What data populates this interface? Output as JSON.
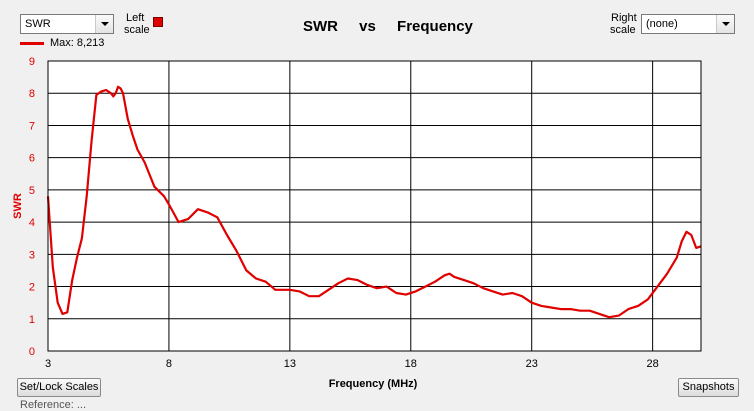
{
  "left_select": {
    "value": "SWR"
  },
  "left_scale": {
    "label_line1": "Left",
    "label_line2": "scale",
    "swatch_color": "#e00000"
  },
  "title": {
    "left": "SWR",
    "middle": "vs",
    "right": "Frequency"
  },
  "right_scale": {
    "label_line1": "Right",
    "label_line2": "scale"
  },
  "right_select": {
    "value": "(none)"
  },
  "legend": {
    "label": "Max: 8,213",
    "color": "#e00000"
  },
  "buttons": {
    "set_lock": "Set/Lock Scales",
    "snapshots": "Snapshots"
  },
  "footer_fragment": "Reference: ...",
  "chart_data": {
    "type": "line",
    "xlabel": "Frequency (MHz)",
    "ylabel": "SWR",
    "xlim": [
      3,
      30
    ],
    "ylim": [
      0,
      9
    ],
    "x_ticks": [
      "3",
      "8",
      "13",
      "18",
      "23",
      "28"
    ],
    "y_ticks": [
      "0",
      "1",
      "2",
      "3",
      "4",
      "5",
      "6",
      "7",
      "8",
      "9"
    ],
    "grid": true,
    "series": [
      {
        "color": "#e00000",
        "x": [
          3.0,
          3.2,
          3.4,
          3.6,
          3.8,
          4.0,
          4.2,
          4.4,
          4.6,
          4.8,
          5.0,
          5.2,
          5.4,
          5.6,
          5.7,
          5.8,
          5.9,
          6.0,
          6.1,
          6.3,
          6.5,
          6.7,
          7.0,
          7.4,
          7.8,
          8.0,
          8.4,
          8.8,
          9.2,
          9.6,
          10.0,
          10.4,
          10.8,
          11.2,
          11.6,
          12.0,
          12.4,
          12.8,
          13.0,
          13.4,
          13.8,
          14.2,
          14.6,
          15.0,
          15.4,
          15.8,
          16.2,
          16.6,
          17.0,
          17.4,
          17.8,
          18.2,
          18.6,
          19.0,
          19.4,
          19.6,
          19.8,
          20.2,
          20.6,
          21.0,
          21.4,
          21.8,
          22.2,
          22.6,
          23.0,
          23.4,
          23.8,
          24.2,
          24.6,
          25.0,
          25.4,
          25.8,
          26.2,
          26.6,
          27.0,
          27.4,
          27.8,
          28.2,
          28.6,
          29.0,
          29.2,
          29.4,
          29.6,
          29.8,
          30.0
        ],
        "values": [
          4.8,
          2.6,
          1.5,
          1.15,
          1.2,
          2.2,
          2.9,
          3.5,
          4.8,
          6.5,
          7.95,
          8.05,
          8.1,
          8.0,
          7.9,
          8.0,
          8.2,
          8.15,
          8.0,
          7.2,
          6.7,
          6.25,
          5.85,
          5.1,
          4.8,
          4.55,
          4.0,
          4.1,
          4.4,
          4.3,
          4.15,
          3.6,
          3.1,
          2.5,
          2.25,
          2.15,
          1.9,
          1.9,
          1.9,
          1.85,
          1.7,
          1.7,
          1.9,
          2.1,
          2.25,
          2.2,
          2.05,
          1.95,
          2.0,
          1.8,
          1.75,
          1.85,
          2.0,
          2.15,
          2.35,
          2.4,
          2.3,
          2.2,
          2.1,
          1.95,
          1.85,
          1.75,
          1.8,
          1.7,
          1.5,
          1.4,
          1.35,
          1.3,
          1.3,
          1.25,
          1.25,
          1.15,
          1.05,
          1.1,
          1.3,
          1.4,
          1.6,
          2.0,
          2.4,
          2.9,
          3.4,
          3.7,
          3.6,
          3.2,
          3.25
        ]
      }
    ]
  }
}
